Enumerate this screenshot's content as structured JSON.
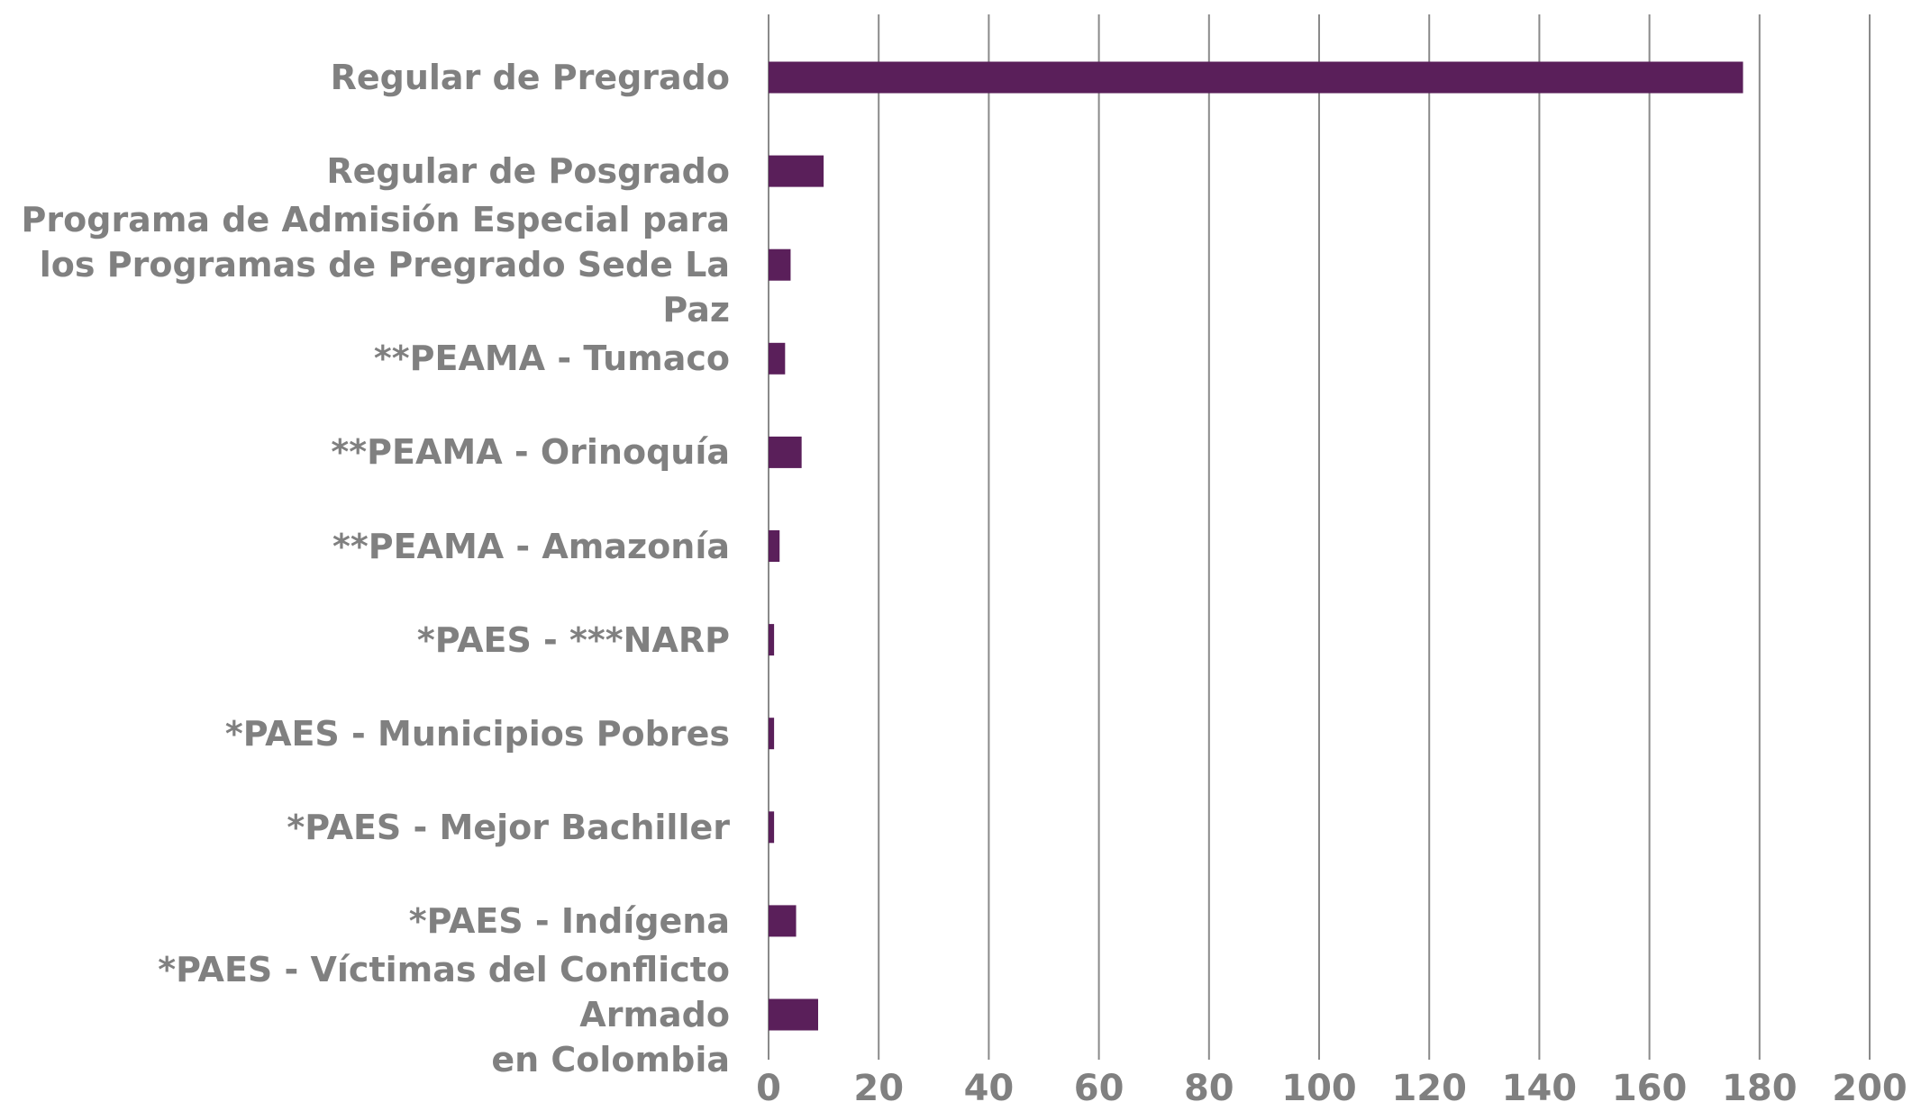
{
  "chart_data": {
    "type": "bar",
    "orientation": "horizontal",
    "categories": [
      "Regular de Pregrado",
      "Regular de Posgrado",
      "Programa de Admisión Especial para\nlos Programas de Pregrado Sede La Paz",
      "**PEAMA - Tumaco",
      "**PEAMA - Orinoquía",
      "**PEAMA - Amazonía",
      "*PAES - ***NARP",
      "*PAES - Municipios Pobres",
      "*PAES - Mejor Bachiller",
      "*PAES - Indígena",
      "*PAES - Víctimas del Conflicto Armado\nen Colombia"
    ],
    "values": [
      177,
      10,
      4,
      3,
      6,
      2,
      1,
      1,
      1,
      5,
      9
    ],
    "color": "#5a1f5a",
    "xlim": [
      0,
      200
    ],
    "xticks": [
      0,
      20,
      40,
      60,
      80,
      100,
      120,
      140,
      160,
      180,
      200
    ],
    "grid": true
  }
}
